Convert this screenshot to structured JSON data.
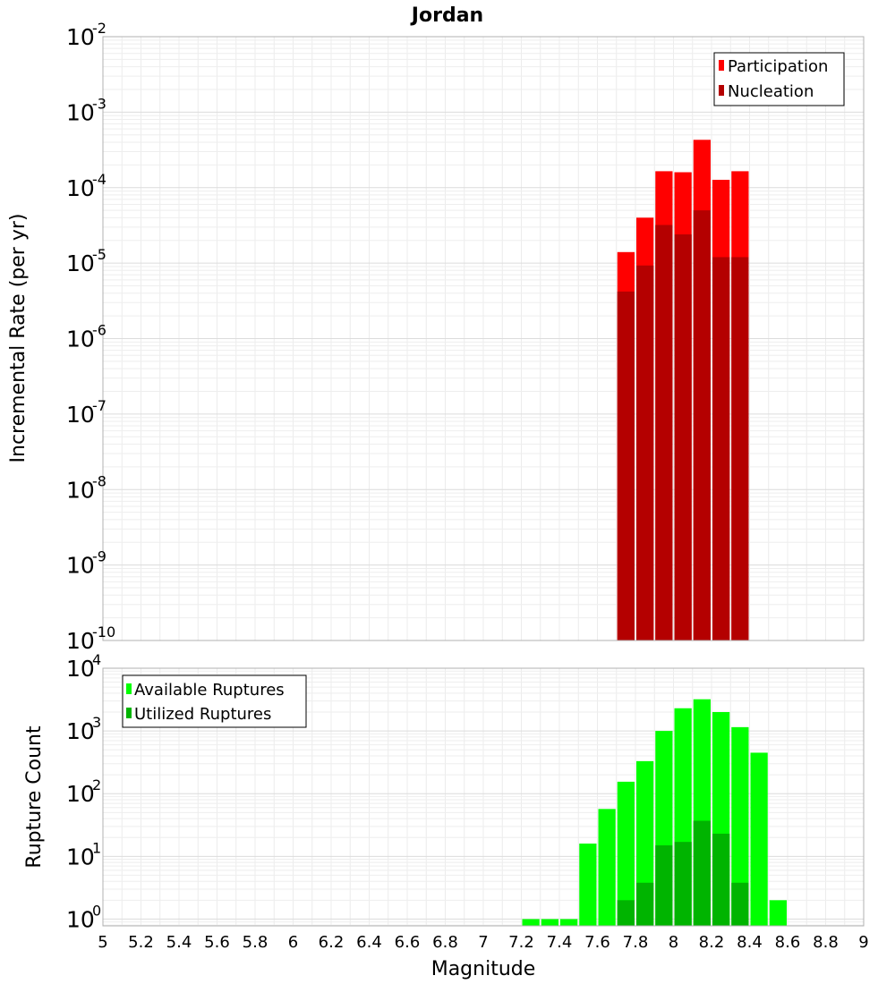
{
  "title": "Jordan",
  "chart_data": [
    {
      "type": "bar",
      "scale": "log",
      "ylabel": "Incremental Rate (per yr)",
      "xlim": [
        5,
        9
      ],
      "ylim": [
        1e-10,
        0.01
      ],
      "y_tick_base": "10",
      "y_tick_exponents": [
        "-10",
        "-9",
        "-8",
        "-7",
        "-6",
        "-5",
        "-4",
        "-3",
        "-2"
      ],
      "bin_width": 0.1,
      "legend": {
        "placement": "top-right",
        "entries": [
          "Participation",
          "Nucleation"
        ]
      },
      "colors": {
        "Participation": "#ff0000",
        "Nucleation": "#b40000"
      },
      "series": [
        {
          "name": "Participation",
          "x": [
            7.75,
            7.85,
            7.95,
            8.05,
            8.15,
            8.25,
            8.35
          ],
          "values": [
            1.4e-05,
            4e-05,
            0.000165,
            0.00016,
            0.00043,
            0.000127,
            0.000165
          ]
        },
        {
          "name": "Nucleation",
          "x": [
            7.75,
            7.85,
            7.95,
            8.05,
            8.15,
            8.25,
            8.35
          ],
          "values": [
            4.2e-06,
            9.3e-06,
            3.2e-05,
            2.4e-05,
            5e-05,
            1.2e-05,
            1.2e-05
          ]
        }
      ],
      "grid": true
    },
    {
      "type": "bar",
      "scale": "log",
      "xlabel": "Magnitude",
      "ylabel": "Rupture Count",
      "xlim": [
        5,
        9
      ],
      "ylim": [
        0.78,
        10000
      ],
      "x_ticks": [
        "5",
        "5.2",
        "5.4",
        "5.6",
        "5.8",
        "6",
        "6.2",
        "6.4",
        "6.6",
        "6.8",
        "7",
        "7.2",
        "7.4",
        "7.6",
        "7.8",
        "8",
        "8.2",
        "8.4",
        "8.6",
        "8.8",
        "9"
      ],
      "y_tick_base": "10",
      "y_tick_exponents": [
        "0",
        "1",
        "2",
        "3",
        "4"
      ],
      "bin_width": 0.1,
      "legend": {
        "placement": "top-left",
        "entries": [
          "Available Ruptures",
          "Utilized Ruptures"
        ]
      },
      "colors": {
        "Available Ruptures": "#00ff00",
        "Utilized Ruptures": "#00b400"
      },
      "series": [
        {
          "name": "Available Ruptures",
          "x": [
            7.25,
            7.35,
            7.45,
            7.55,
            7.65,
            7.75,
            7.85,
            7.95,
            8.05,
            8.15,
            8.25,
            8.35,
            8.45,
            8.55
          ],
          "values": [
            1,
            1,
            1,
            16,
            57,
            155,
            330,
            1000,
            2300,
            3200,
            2000,
            1150,
            450,
            2
          ]
        },
        {
          "name": "Utilized Ruptures",
          "x": [
            7.75,
            7.85,
            7.95,
            8.05,
            8.15,
            8.25,
            8.35
          ],
          "values": [
            2,
            3.8,
            15,
            17,
            37,
            23,
            3.8
          ]
        }
      ],
      "grid": true
    }
  ]
}
